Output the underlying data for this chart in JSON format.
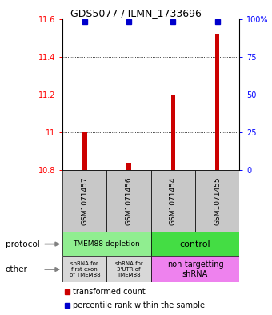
{
  "title": "GDS5077 / ILMN_1733696",
  "samples": [
    "GSM1071457",
    "GSM1071456",
    "GSM1071454",
    "GSM1071455"
  ],
  "red_values": [
    11.0,
    10.84,
    11.2,
    11.52
  ],
  "blue_values": [
    98,
    98,
    98,
    98
  ],
  "ylim_left": [
    10.8,
    11.6
  ],
  "ylim_right": [
    0,
    100
  ],
  "yticks_left": [
    10.8,
    11.0,
    11.2,
    11.4,
    11.6
  ],
  "yticks_right": [
    0,
    25,
    50,
    75,
    100
  ],
  "ytick_labels_left": [
    "10.8",
    "11",
    "11.2",
    "11.4",
    "11.6"
  ],
  "ytick_labels_right": [
    "0",
    "25",
    "50",
    "75",
    "100%"
  ],
  "bar_color": "#CC0000",
  "dot_color": "#0000CC",
  "background_color": "#FFFFFF",
  "sample_bg": "#C8C8C8",
  "proto_color_left": "#90EE90",
  "proto_color_right": "#44DD44",
  "other_color_left": "#D8D8D8",
  "other_color_right": "#EE82EE",
  "bar_width": 0.1
}
